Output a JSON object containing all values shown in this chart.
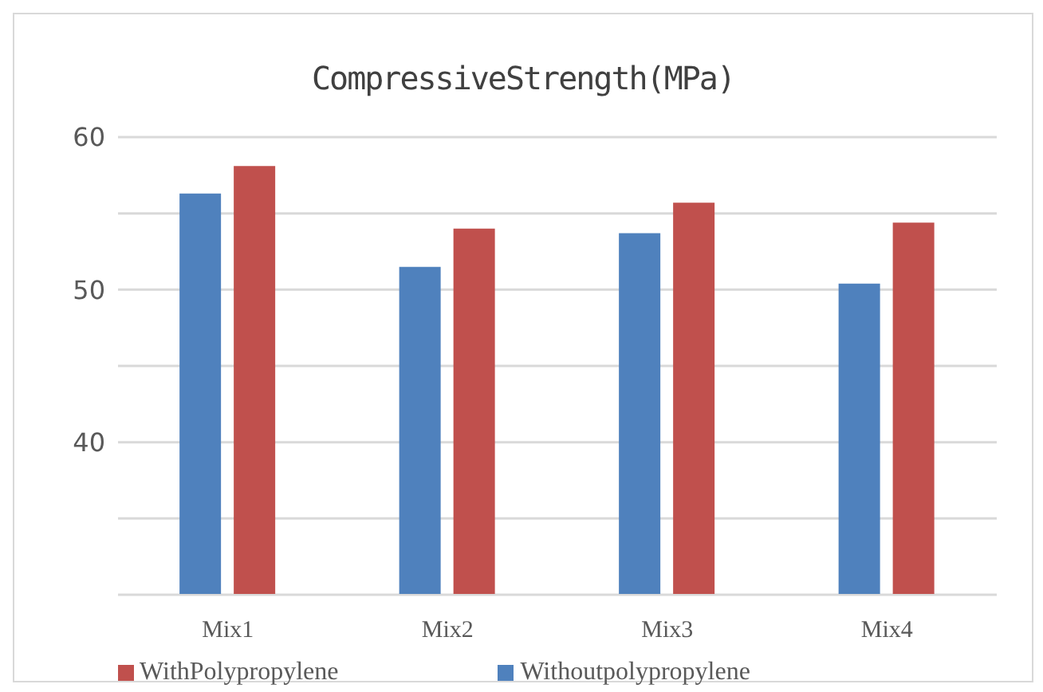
{
  "chart_data": {
    "type": "bar",
    "title": "CompressiveStrength(MPa)",
    "categories": [
      "Mix1",
      "Mix2",
      "Mix3",
      "Mix4"
    ],
    "series": [
      {
        "name": "Withoutpolypropylene",
        "color": "#4f81bd",
        "values": [
          56.3,
          51.5,
          53.7,
          50.4
        ]
      },
      {
        "name": "WithPolypropylene",
        "color": "#c0504d",
        "values": [
          58.1,
          54.0,
          55.7,
          54.4
        ]
      }
    ],
    "ylim": [
      30,
      60
    ],
    "yticks": [
      60,
      {
        "value": 55,
        "label": null
      },
      50,
      {
        "value": 45,
        "label": null
      },
      40,
      {
        "value": 35,
        "label": null
      }
    ],
    "grid": "y",
    "legend": "bottom"
  }
}
